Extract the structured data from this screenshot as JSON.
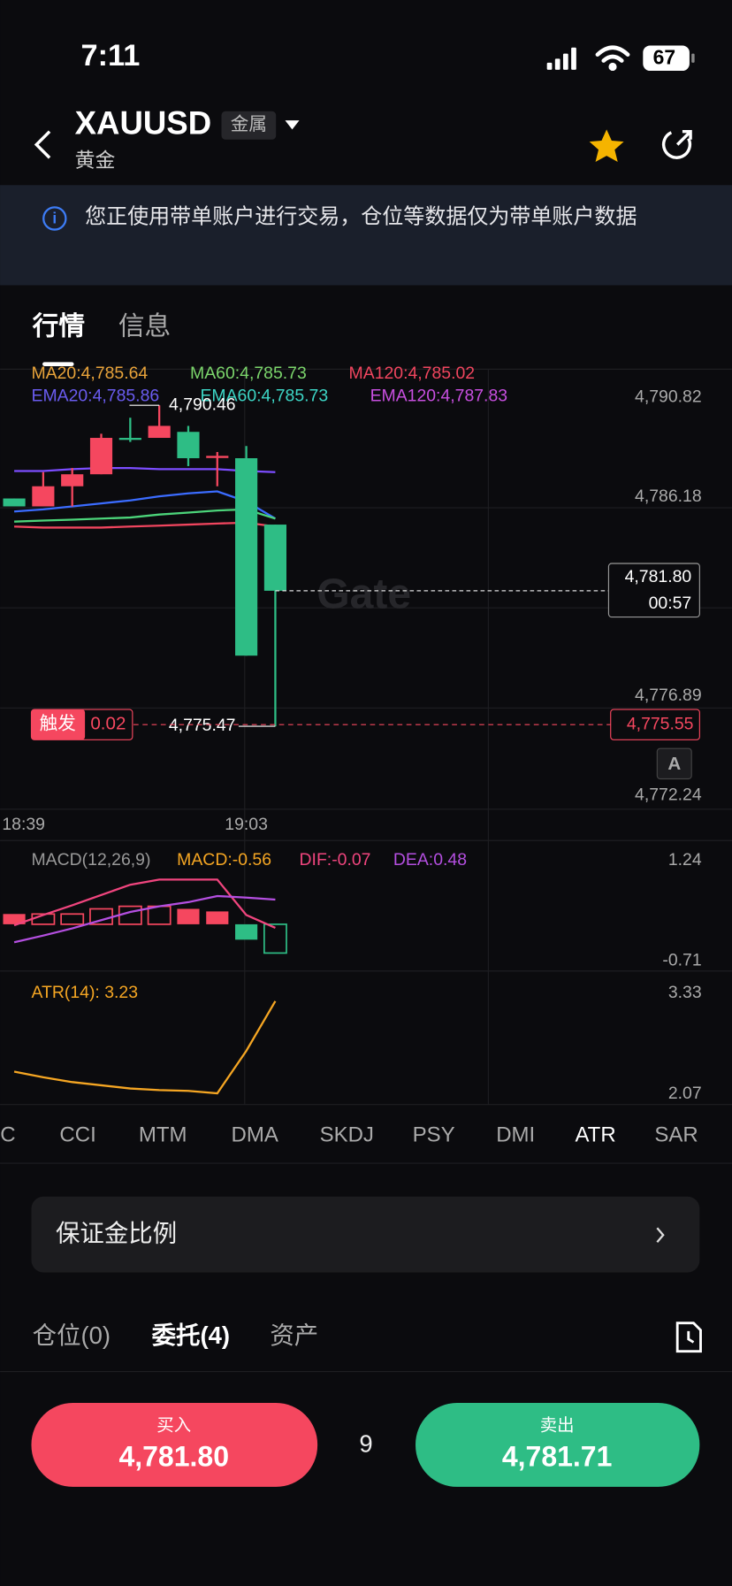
{
  "status_bar": {
    "time": "7:11",
    "battery": "67"
  },
  "header": {
    "symbol": "XAUUSD",
    "tag": "金属",
    "name": "黄金"
  },
  "notice": "您正使用带单账户进行交易，仓位等数据仅为带单账户数据",
  "tabs": [
    "行情",
    "信息"
  ],
  "chart_data": [
    {
      "type": "candlestick",
      "legend": [
        {
          "text": "MA20:4,785.64",
          "color": "#e8a33a"
        },
        {
          "text": "MA60:4,785.73",
          "color": "#7bd56b"
        },
        {
          "text": "MA120:4,785.02",
          "color": "#f0455e"
        },
        {
          "text": "EMA20:4,785.86",
          "color": "#6a5cf0"
        },
        {
          "text": "EMA60:4,785.73",
          "color": "#3dd6c6"
        },
        {
          "text": "EMA120:4,787.83",
          "color": "#c84fe0"
        }
      ],
      "categories": [
        "18:39",
        null,
        null,
        null,
        null,
        null,
        null,
        null,
        "19:03",
        null
      ],
      "open": [
        4786.11,
        4785.74,
        4786.68,
        4787.24,
        4788.94,
        4788.94,
        4789.22,
        4788.0,
        4787.99,
        4784.89
      ],
      "high": [
        4786.11,
        4787.34,
        4787.53,
        4789.13,
        4789.88,
        4790.46,
        4789.5,
        4788.28,
        4788.56,
        4784.89
      ],
      "low": [
        4785.74,
        4785.74,
        4785.74,
        4787.24,
        4788.75,
        4788.94,
        4787.62,
        4786.68,
        4778.77,
        4775.47
      ],
      "close": [
        4785.74,
        4786.68,
        4787.24,
        4788.94,
        4788.9,
        4789.5,
        4787.99,
        4788.1,
        4778.77,
        4781.8
      ],
      "up_color": "#f5475f",
      "down_color": "#2ebd85",
      "series": [
        {
          "color": "#7c4dff",
          "values": [
            4787.39,
            4787.39,
            4787.48,
            4787.53,
            4787.53,
            4787.48,
            4787.48,
            4787.48,
            4787.39,
            4787.34
          ]
        },
        {
          "color": "#3b6cff",
          "values": [
            4785.5,
            4785.6,
            4785.74,
            4785.88,
            4786.02,
            4786.21,
            4786.35,
            4786.44,
            4785.97,
            4785.17
          ]
        },
        {
          "color": "#4cd47a",
          "values": [
            4785.03,
            4785.08,
            4785.12,
            4785.17,
            4785.22,
            4785.36,
            4785.45,
            4785.55,
            4785.6,
            4785.17
          ]
        },
        {
          "color": "#f0455e",
          "values": [
            4784.8,
            4784.75,
            4784.75,
            4784.75,
            4784.8,
            4784.84,
            4784.89,
            4784.94,
            4784.98,
            4784.8
          ]
        }
      ],
      "ylim": [
        4771.6,
        4792.1
      ],
      "yticks": [
        {
          "value": 4790.82,
          "label": "4,790.82"
        },
        {
          "value": 4786.18,
          "label": "4,786.18"
        },
        {
          "value": 4776.89,
          "label": "4,776.89"
        },
        {
          "value": 4772.24,
          "label": "4,772.24"
        }
      ],
      "high_label": {
        "value": 4790.46,
        "label": "4,790.46"
      },
      "low_label": {
        "value": 4775.47,
        "label": "4,775.47"
      },
      "last_price": {
        "value": 4781.8,
        "label": "4,781.80"
      },
      "countdown": "00:57",
      "trigger": {
        "tag": "触发",
        "amount": 0.02,
        "price": {
          "value": 4775.55,
          "label": "4,775.55"
        }
      },
      "axis_badge": "A",
      "watermark": "Gate"
    },
    {
      "type": "bar",
      "legend": [
        {
          "text": "MACD(12,26,9)",
          "color": "#999999"
        },
        {
          "text": "MACD:-0.56",
          "color": "#f5a623"
        },
        {
          "text": "DIF:-0.07",
          "color": "#f0457e"
        },
        {
          "text": "DEA:0.48",
          "color": "#b44fe0"
        }
      ],
      "values": [
        0.2,
        0.2,
        0.2,
        0.3,
        0.35,
        0.35,
        0.3,
        0.25,
        -0.3,
        -0.56
      ],
      "hollow": [
        false,
        true,
        true,
        true,
        true,
        true,
        false,
        false,
        false,
        true
      ],
      "up_color": "#f5475f",
      "down_color": "#2ebd85",
      "series": [
        {
          "color": "#f0457e",
          "values": [
            -0.02,
            0.18,
            0.37,
            0.57,
            0.77,
            0.87,
            0.87,
            0.87,
            0.18,
            -0.07
          ]
        },
        {
          "color": "#b44fe0",
          "values": [
            -0.35,
            -0.22,
            -0.08,
            0.08,
            0.24,
            0.35,
            0.43,
            0.55,
            0.52,
            0.48
          ]
        }
      ],
      "ylim": [
        -0.91,
        1.63
      ],
      "yticks": [
        1.24,
        -0.71
      ]
    },
    {
      "type": "line",
      "legend": [
        {
          "text": "ATR(14): 3.23",
          "color": "#f5a623"
        }
      ],
      "series": [
        {
          "color": "#f5a623",
          "values": [
            2.35,
            2.28,
            2.22,
            2.18,
            2.14,
            2.12,
            2.11,
            2.08,
            2.61,
            3.23
          ]
        }
      ],
      "ylim": [
        1.94,
        3.58
      ],
      "yticks": [
        3.33,
        2.07
      ]
    }
  ],
  "indicators": [
    "ROC",
    "CCI",
    "MTM",
    "DMA",
    "SKDJ",
    "PSY",
    "DMI",
    "ATR",
    "SAR"
  ],
  "margin_ratio": "保证金比例",
  "order_tabs": [
    "仓位(0)",
    "委托(4)",
    "资产"
  ],
  "buy": {
    "label": "买入",
    "price": "4,781.80"
  },
  "spread": 9,
  "sell": {
    "label": "卖出",
    "price": "4,781.71"
  }
}
